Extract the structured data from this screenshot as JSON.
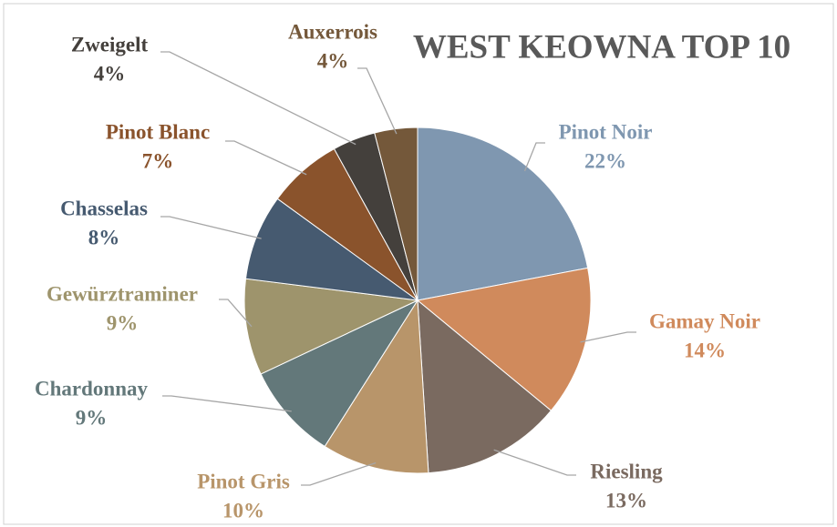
{
  "chart_data": {
    "type": "pie",
    "title": "WEST KEOWNA TOP 10",
    "categories": [
      "Pinot Noir",
      "Gamay Noir",
      "Riesling",
      "Pinot Gris",
      "Chardonnay",
      "Gewürztraminer",
      "Chasselas",
      "Pinot Blanc",
      "Zweigelt",
      "Auxerrois"
    ],
    "values": [
      22,
      14,
      13,
      10,
      9,
      9,
      8,
      7,
      4,
      4
    ],
    "value_labels": [
      "22%",
      "14%",
      "13%",
      "10%",
      "9%",
      "9%",
      "8%",
      "7%",
      "4%",
      "4%"
    ],
    "colors": [
      "#7f97b0",
      "#d08a5c",
      "#7a6a60",
      "#b8956a",
      "#63787a",
      "#9e946c",
      "#465a70",
      "#8a532c",
      "#44403c",
      "#74583a"
    ]
  }
}
